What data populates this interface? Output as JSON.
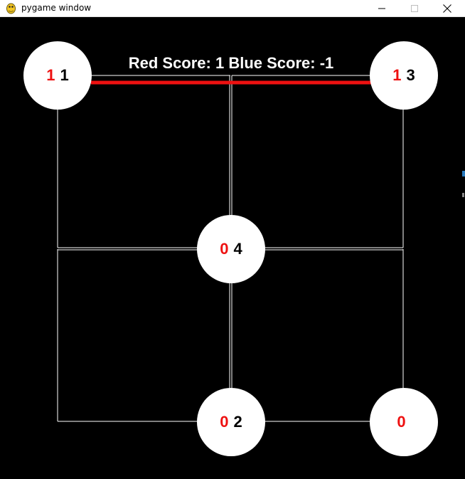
{
  "window": {
    "title": "pygame window",
    "icon": "pygame-snake-icon",
    "controls": [
      "minimize-icon",
      "maximize-icon",
      "close-icon"
    ]
  },
  "game": {
    "score_text": "Red Score: 1 Blue Score: -1",
    "red_score": 1,
    "blue_score": -1
  },
  "nodes": [
    {
      "id": "top-left",
      "red": "1",
      "black": "1"
    },
    {
      "id": "top-right",
      "red": "1",
      "black": "3"
    },
    {
      "id": "center",
      "red": "0",
      "black": "4"
    },
    {
      "id": "bottom-center",
      "red": "0",
      "black": "2"
    },
    {
      "id": "bottom-right",
      "red": "0",
      "black": ""
    }
  ],
  "colors": {
    "background": "#000000",
    "grid_line": "#ffffff",
    "claimed_edge": "#ee1111",
    "node_fill": "#ffffff",
    "red_text": "#ee1111",
    "black_text": "#000000"
  }
}
